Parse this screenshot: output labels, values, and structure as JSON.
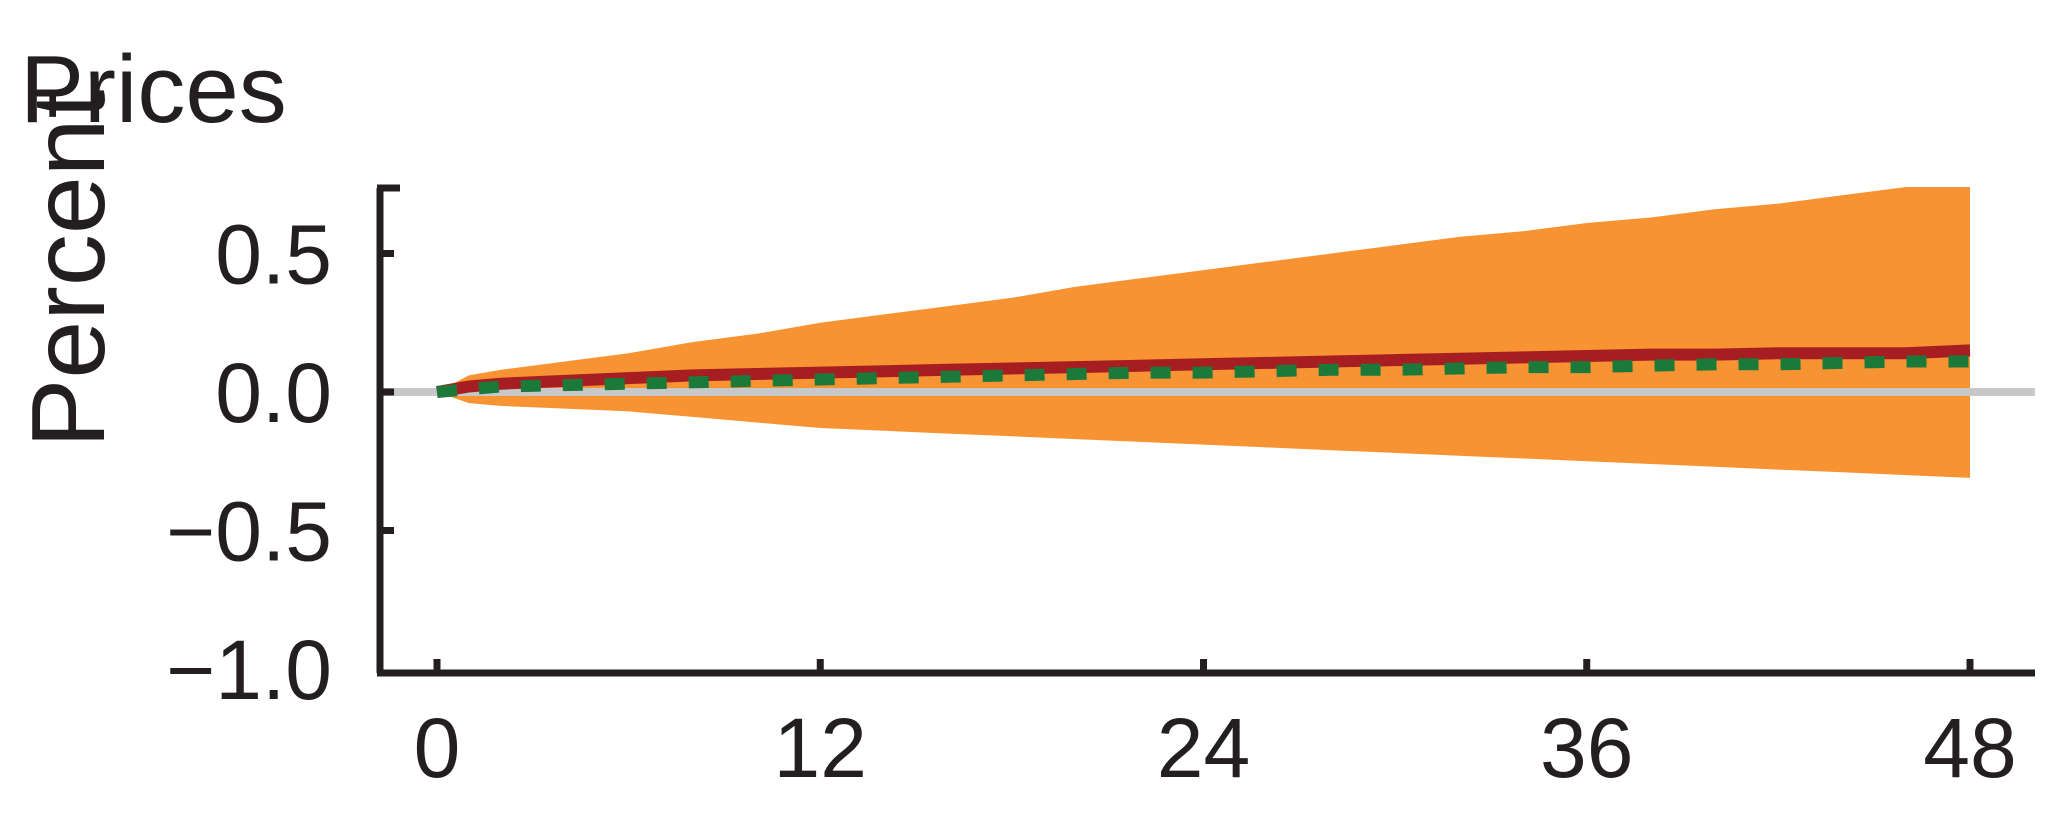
{
  "chart_data": {
    "type": "area",
    "title": "Prices",
    "xlabel": "",
    "ylabel": "Percent",
    "xlim": [
      0,
      48
    ],
    "ylim": [
      -1.0,
      0.7
    ],
    "xticks": [
      0,
      12,
      24,
      36,
      48
    ],
    "xtick_labels": [
      "0",
      "12",
      "24",
      "36",
      "48"
    ],
    "yticks": [
      0.5,
      0.0,
      -0.5,
      -1.0
    ],
    "ytick_labels": [
      "0.5",
      "0.0",
      "−0.5",
      "−1.0"
    ],
    "grid": false,
    "legend": "none",
    "zero_line": 0.0,
    "band": {
      "x": [
        0,
        1,
        2,
        4,
        6,
        8,
        10,
        12,
        14,
        16,
        18,
        20,
        22,
        24,
        26,
        28,
        30,
        32,
        34,
        36,
        38,
        40,
        42,
        44,
        46,
        48
      ],
      "upper": [
        0.0,
        0.06,
        0.08,
        0.11,
        0.14,
        0.18,
        0.21,
        0.25,
        0.28,
        0.31,
        0.34,
        0.38,
        0.41,
        0.44,
        0.47,
        0.5,
        0.53,
        0.56,
        0.58,
        0.61,
        0.63,
        0.66,
        0.68,
        0.71,
        0.74,
        0.74
      ],
      "lower": [
        0.0,
        -0.04,
        -0.05,
        -0.06,
        -0.07,
        -0.09,
        -0.11,
        -0.13,
        -0.14,
        -0.15,
        -0.16,
        -0.17,
        -0.18,
        -0.19,
        -0.2,
        -0.21,
        -0.22,
        -0.23,
        -0.24,
        -0.25,
        -0.26,
        -0.27,
        -0.28,
        -0.29,
        -0.3,
        -0.31
      ]
    },
    "series": [
      {
        "style": "solid",
        "x": [
          0,
          1,
          2,
          4,
          6,
          8,
          10,
          12,
          14,
          16,
          18,
          20,
          22,
          24,
          26,
          28,
          30,
          32,
          34,
          36,
          38,
          40,
          42,
          44,
          46,
          48
        ],
        "values": [
          0.0,
          0.02,
          0.03,
          0.04,
          0.05,
          0.06,
          0.065,
          0.07,
          0.075,
          0.08,
          0.085,
          0.09,
          0.095,
          0.1,
          0.105,
          0.11,
          0.115,
          0.12,
          0.125,
          0.13,
          0.135,
          0.135,
          0.14,
          0.14,
          0.14,
          0.15
        ]
      },
      {
        "style": "dashed",
        "x": [
          0,
          1,
          2,
          4,
          6,
          8,
          10,
          12,
          14,
          16,
          18,
          20,
          22,
          24,
          26,
          28,
          30,
          32,
          34,
          36,
          38,
          40,
          42,
          44,
          46,
          48
        ],
        "values": [
          0.0,
          0.01,
          0.02,
          0.025,
          0.03,
          0.035,
          0.04,
          0.045,
          0.05,
          0.055,
          0.06,
          0.065,
          0.07,
          0.07,
          0.075,
          0.08,
          0.08,
          0.085,
          0.09,
          0.09,
          0.095,
          0.1,
          0.1,
          0.105,
          0.11,
          0.11
        ]
      }
    ],
    "colors": {
      "band": "#f79332",
      "solid_line": "#a61e22",
      "dashed_line": "#1b7a3a",
      "zero_line": "#c8c8c8",
      "axis": "#231f20",
      "text": "#231f20"
    }
  }
}
